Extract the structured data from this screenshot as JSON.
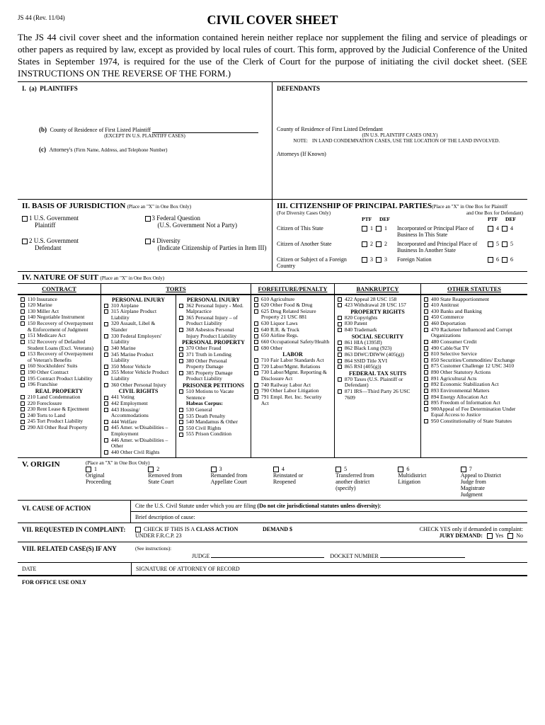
{
  "form_id": "JS 44 (Rev. 11/04)",
  "title": "CIVIL COVER SHEET",
  "intro": "The JS 44 civil cover sheet and the information contained herein neither replace nor supplement the filing and service of pleadings or other papers as required by law, except as provided by local rules of court. This form, approved by the Judicial Conference of the United States in September 1974, is required for the use of the Clerk of Court for the purpose of initiating the civil docket sheet. (SEE INSTRUCTIONS ON THE REVERSE OF THE FORM.)",
  "sec1": {
    "num": "I.",
    "a": "(a)",
    "plaintiffs": "PLAINTIFFS",
    "defendants": "DEFENDANTS",
    "b": "(b)",
    "county_p": "County of Residence of First Listed Plaintiff",
    "except": "(EXCEPT IN U.S. PLAINTIFF CASES)",
    "county_d": "County of Residence of First Listed Defendant",
    "in_us": "(IN U.S. PLAINTIFF CASES ONLY)",
    "note_lbl": "NOTE:",
    "note": "IN LAND CONDEMNATION CASES, USE THE LOCATION OF THE LAND INVOLVED.",
    "c": "(c)",
    "attorney_p": "Attorney's",
    "attorney_p_sub": "(Firm Name, Address, and Telephone Number)",
    "attorney_d": "Attorneys (If Known)"
  },
  "sec2": {
    "title": "II. BASIS OF JURISDICTION",
    "hint": "(Place an \"X\" in One Box Only)",
    "items": [
      {
        "n": "1",
        "l": "U.S. Government",
        "s": "Plaintiff"
      },
      {
        "n": "3",
        "l": "Federal Question",
        "s": "(U.S. Government Not a Party)"
      },
      {
        "n": "2",
        "l": "U.S. Government",
        "s": "Defendant"
      },
      {
        "n": "4",
        "l": "Diversity",
        "s": "(Indicate Citizenship of Parties in Item III)"
      }
    ]
  },
  "sec3": {
    "title": "III. CITIZENSHIP OF PRINCIPAL PARTIES",
    "hint1": "(Place an \"X\" in One Box for Plaintiff",
    "hint2": "and One Box for Defendant)",
    "diversity": "(For Diversity Cases Only)",
    "ptf": "PTF",
    "def": "DEF",
    "rows": [
      {
        "l": "Citizen of This State",
        "n": "1",
        "r": "Incorporated or Principal Place of Business In This State",
        "rn": "4"
      },
      {
        "l": "Citizen of Another State",
        "n": "2",
        "r": "Incorporated and Principal Place of Business In Another State",
        "rn": "5"
      },
      {
        "l": "Citizen or Subject of a Foreign Country",
        "n": "3",
        "r": "Foreign Nation",
        "rn": "6"
      }
    ]
  },
  "sec4": {
    "title": "IV. NATURE OF SUIT",
    "hint": "(Place an \"X\" in One Box Only)",
    "contract_h": "CONTRACT",
    "torts_h": "TORTS",
    "forf_h": "FORFEITURE/PENALTY",
    "bank_h": "BANKRUPTCY",
    "other_h": "OTHER STATUTES",
    "contract": [
      "110 Insurance",
      "120 Marine",
      "130 Miller Act",
      "140 Negotiable Instrument",
      "150 Recovery of Overpayment & Enforcement of Judgment",
      "151 Medicare Act",
      "152 Recovery of Defaulted Student Loans (Excl. Veterans)",
      "153 Recovery of Overpayment of Veteran's Benefits",
      "160 Stockholders' Suits",
      "190 Other Contract",
      "195 Contract Product Liability",
      "196 Franchise"
    ],
    "real_prop_h": "REAL PROPERTY",
    "real_prop": [
      "210 Land Condemnation",
      "220 Foreclosure",
      "230 Rent Lease & Ejectment",
      "240 Torts to Land",
      "245 Tort Product Liability",
      "290 All Other Real Property"
    ],
    "pi1_h": "PERSONAL INJURY",
    "pi1": [
      "310 Airplane",
      "315 Airplane Product Liability",
      "320 Assault, Libel & Slander",
      "330 Federal Employers' Liability",
      "340 Marine",
      "345 Marine Product Liability",
      "350 Motor Vehicle",
      "355 Motor Vehicle Product Liability",
      "360 Other Personal Injury"
    ],
    "civil_h": "CIVIL RIGHTS",
    "civil": [
      "441 Voting",
      "442 Employment",
      "443 Housing/ Accommodations",
      "444 Welfare",
      "445 Amer. w/Disabilities – Employment",
      "446 Amer. w/Disabilities – Other",
      "440 Other Civil Rights"
    ],
    "pi2_h": "PERSONAL INJURY",
    "pi2": [
      "362 Personal Injury - Med. Malpractice",
      "365 Personal Injury – of Product Liability",
      "368 Asbestos Personal Injury Product Liability"
    ],
    "pp_h": "PERSONAL PROPERTY",
    "pp": [
      "370 Other Fraud",
      "371 Truth in Lending",
      "380 Other Personal Property Damage",
      "385 Property Damage Product Liability"
    ],
    "pris_h": "PRISONER PETITIONS",
    "pris1": [
      "510 Motions to Vacate Sentence"
    ],
    "habeas": "Habeas Corpus:",
    "pris2": [
      "530 General",
      "535 Death Penalty",
      "540 Mandamus & Other",
      "550 Civil Rights",
      "555 Prison Condition"
    ],
    "forf": [
      "610 Agriculture",
      "620 Other Food & Drug",
      "625 Drug Related Seizure Property 21 USC 881",
      "630 Liquor Laws",
      "640 R.R. & Truck",
      "650 Airline Regs.",
      "660 Occupational Safety/Health",
      "690 Other"
    ],
    "labor_h": "LABOR",
    "labor": [
      "710 Fair Labor Standards Act",
      "720 Labor/Mgmt. Relations",
      "730 Labor/Mgmt. Reporting & Disclosure Act",
      "740 Railway Labor Act",
      "790 Other Labor Litigation",
      "791 Empl. Ret. Inc. Security Act"
    ],
    "bank": [
      "422 Appeal 28 USC 158",
      "423 Withdrawal 28 USC 157"
    ],
    "prop_h": "PROPERTY RIGHTS",
    "prop": [
      "820 Copyrights",
      "830 Patent",
      "840 Trademark"
    ],
    "ss_h": "SOCIAL SECURITY",
    "ss": [
      "861 HIA (1395ff)",
      "862 Black Lung (923)",
      "863 DIWC/DIWW (405(g))",
      "864 SSID Title XVI",
      "865 RSI (405(g))"
    ],
    "tax_h": "FEDERAL TAX SUITS",
    "tax": [
      "870 Taxes (U.S. Plaintiff or Defendant)",
      "871 IRS—Third Party 26 USC 7609"
    ],
    "other": [
      "400 State Reapportionment",
      "410 Antitrust",
      "430 Banks and Banking",
      "450 Commerce",
      "460 Deportation",
      "470 Racketeer Influenced and Corrupt Organizations",
      "480 Consumer Credit",
      "490 Cable/Sat TV",
      "810 Selective Service",
      "850 Securities/Commodities/ Exchange",
      "875 Customer Challenge 12 USC 3410",
      "890 Other Statutory Actions",
      "891 Agricultural Acts",
      "892 Economic Stabilization Act",
      "893 Environmental Matters",
      "894 Energy Allocation Act",
      "895 Freedom of Information Act",
      "900Appeal of Fee Determination Under Equal Access to Justice",
      "950 Constitutionality of State Statutes"
    ]
  },
  "sec5": {
    "title": "V. ORIGIN",
    "hint": "(Place an \"X\" in One Box Only)",
    "appeal": "Appeal to District Judge from Magistrate Judgment",
    "items": [
      {
        "n": "1",
        "l": "Original Proceeding"
      },
      {
        "n": "2",
        "l": "Removed from State Court"
      },
      {
        "n": "3",
        "l": "Remanded from Appellate Court"
      },
      {
        "n": "4",
        "l": "Reinstated or Reopened"
      },
      {
        "n": "5",
        "l": "Transferred from another district (specify)"
      },
      {
        "n": "6",
        "l": "Multidistrict Litigation"
      },
      {
        "n": "7",
        "l": ""
      }
    ]
  },
  "sec6": {
    "title": "VI. CAUSE OF ACTION",
    "line1a": "Cite the U.S. Civil Statute under which you are filing ",
    "line1b": "(Do not cite jurisdictional statutes unless diversity)",
    "line2": "Brief description of cause:"
  },
  "sec7": {
    "title": "VII. REQUESTED IN COMPLAINT:",
    "check": "CHECK IF THIS IS A ",
    "class": "CLASS ACTION",
    "under": "UNDER F.R.C.P. 23",
    "demand": "DEMAND $",
    "checky": "CHECK YES only if demanded in complaint:",
    "jury": "JURY DEMAND:",
    "yes": "Yes",
    "no": "No"
  },
  "sec8": {
    "title": "VIII. RELATED CASE(S) IF ANY",
    "see": "(See instructions):",
    "judge": "JUDGE",
    "docket": "DOCKET NUMBER"
  },
  "sec9": {
    "date": "DATE",
    "sig": "SIGNATURE OF ATTORNEY OF RECORD"
  },
  "office": "FOR OFFICE USE ONLY"
}
